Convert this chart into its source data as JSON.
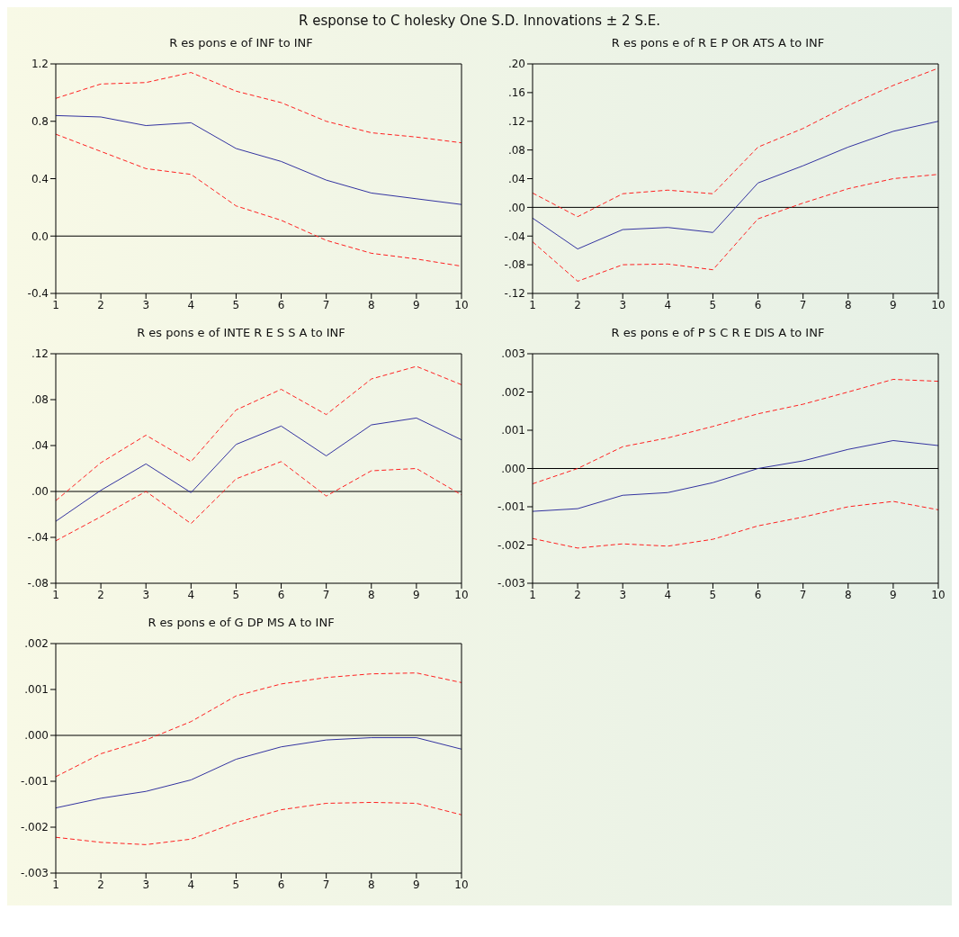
{
  "chart_data": [
    {
      "type": "line",
      "title": "R es pons e of INF to INF",
      "annotations": [
        "R esponse to C holesky One S.D. Innovations ± 2 S.E."
      ],
      "categories": [
        "1",
        "2",
        "3",
        "4",
        "5",
        "6",
        "7",
        "8",
        "9",
        "10"
      ],
      "ylim": [
        -0.4,
        1.2
      ],
      "yticks": [
        {
          "value": -0.4,
          "label": "-0.4"
        },
        {
          "value": 0,
          "label": "0.0"
        },
        0.4,
        0.8,
        1.2
      ],
      "grid": false,
      "legend": false,
      "ref_lines": [
        {
          "axis": "y",
          "value": 0,
          "color": "#000000"
        }
      ],
      "series": [
        {
          "color": "#3333a0",
          "line_style": "solid",
          "values": [
            0.84,
            0.83,
            0.77,
            0.79,
            0.61,
            0.52,
            0.39,
            0.3,
            0.26,
            0.22
          ]
        },
        {
          "color": "#ff2020",
          "line_style": "dashed",
          "values": [
            0.96,
            1.06,
            1.07,
            1.14,
            1.01,
            0.93,
            0.8,
            0.72,
            0.69,
            0.65
          ]
        },
        {
          "color": "#ff2020",
          "line_style": "dashed",
          "values": [
            0.71,
            0.59,
            0.47,
            0.43,
            0.21,
            0.11,
            -0.03,
            -0.12,
            -0.16,
            -0.21
          ]
        }
      ]
    },
    {
      "type": "line",
      "title": "R es pons e of R E P OR ATS A to INF",
      "categories": [
        "1",
        "2",
        "3",
        "4",
        "5",
        "6",
        "7",
        "8",
        "9",
        "10"
      ],
      "ylim": [
        -0.12,
        0.2
      ],
      "yticks": [
        {
          "value": -0.12,
          "label": "-.12"
        },
        {
          "value": -0.08,
          "label": "-.08"
        },
        {
          "value": -0.04,
          "label": "-.04"
        },
        {
          "value": 0,
          "label": ".00"
        },
        {
          "value": 0.04,
          "label": ".04"
        },
        {
          "value": 0.08,
          "label": ".08"
        },
        {
          "value": 0.12,
          "label": ".12"
        },
        {
          "value": 0.16,
          "label": ".16"
        },
        {
          "value": 0.2,
          "label": ".20"
        }
      ],
      "grid": false,
      "legend": false,
      "ref_lines": [
        {
          "axis": "y",
          "value": 0,
          "color": "#000000"
        }
      ],
      "series": [
        {
          "color": "#3333a0",
          "line_style": "solid",
          "values": [
            -0.015,
            -0.058,
            -0.031,
            -0.028,
            -0.035,
            0.034,
            0.058,
            0.084,
            0.106,
            0.12
          ]
        },
        {
          "color": "#ff2020",
          "line_style": "dashed",
          "values": [
            0.02,
            -0.013,
            0.019,
            0.024,
            0.019,
            0.084,
            0.11,
            0.142,
            0.17,
            0.194
          ]
        },
        {
          "color": "#ff2020",
          "line_style": "dashed",
          "values": [
            -0.048,
            -0.103,
            -0.08,
            -0.079,
            -0.087,
            -0.016,
            0.006,
            0.026,
            0.04,
            0.046
          ]
        }
      ]
    },
    {
      "type": "line",
      "title": "R es pons e of INTE R E S S A to INF",
      "categories": [
        "1",
        "2",
        "3",
        "4",
        "5",
        "6",
        "7",
        "8",
        "9",
        "10"
      ],
      "ylim": [
        -0.08,
        0.12
      ],
      "yticks": [
        {
          "value": -0.08,
          "label": "-.08"
        },
        {
          "value": -0.04,
          "label": "-.04"
        },
        {
          "value": 0,
          "label": ".00"
        },
        {
          "value": 0.04,
          "label": ".04"
        },
        {
          "value": 0.08,
          "label": ".08"
        },
        {
          "value": 0.12,
          "label": ".12"
        }
      ],
      "grid": false,
      "legend": false,
      "ref_lines": [
        {
          "axis": "y",
          "value": 0,
          "color": "#000000"
        }
      ],
      "series": [
        {
          "color": "#3333a0",
          "line_style": "solid",
          "values": [
            -0.026,
            0.001,
            0.024,
            -0.001,
            0.041,
            0.057,
            0.031,
            0.058,
            0.064,
            0.045
          ]
        },
        {
          "color": "#ff2020",
          "line_style": "dashed",
          "values": [
            -0.008,
            0.025,
            0.049,
            0.026,
            0.071,
            0.089,
            0.067,
            0.098,
            0.109,
            0.093
          ]
        },
        {
          "color": "#ff2020",
          "line_style": "dashed",
          "values": [
            -0.043,
            -0.022,
            0.0,
            -0.028,
            0.011,
            0.026,
            -0.004,
            0.018,
            0.02,
            -0.003
          ]
        }
      ]
    },
    {
      "type": "line",
      "title": "R es pons e of P S C R E DIS A to INF",
      "categories": [
        "1",
        "2",
        "3",
        "4",
        "5",
        "6",
        "7",
        "8",
        "9",
        "10"
      ],
      "ylim": [
        -0.003,
        0.003
      ],
      "yticks": [
        {
          "value": -0.003,
          "label": "-.003"
        },
        {
          "value": -0.002,
          "label": "-.002"
        },
        {
          "value": -0.001,
          "label": "-.001"
        },
        {
          "value": 0,
          "label": ".000"
        },
        {
          "value": 0.001,
          "label": ".001"
        },
        {
          "value": 0.002,
          "label": ".002"
        },
        {
          "value": 0.003,
          "label": ".003"
        }
      ],
      "grid": false,
      "legend": false,
      "ref_lines": [
        {
          "axis": "y",
          "value": 0,
          "color": "#000000"
        }
      ],
      "series": [
        {
          "color": "#3333a0",
          "line_style": "solid",
          "values": [
            -0.00112,
            -0.00105,
            -0.0007,
            -0.00063,
            -0.00037,
            0,
            0.0002,
            0.0005,
            0.00073,
            0.0006
          ]
        },
        {
          "color": "#ff2020",
          "line_style": "dashed",
          "values": [
            -0.0004,
            0,
            0.00057,
            0.0008,
            0.0011,
            0.00143,
            0.00168,
            0.002,
            0.00233,
            0.00228
          ]
        },
        {
          "color": "#ff2020",
          "line_style": "dashed",
          "values": [
            -0.00183,
            -0.00208,
            -0.00197,
            -0.00203,
            -0.00185,
            -0.0015,
            -0.00127,
            -0.001,
            -0.00086,
            -0.00108
          ]
        }
      ]
    },
    {
      "type": "line",
      "title": "R es pons e of G DP MS A to INF",
      "categories": [
        "1",
        "2",
        "3",
        "4",
        "5",
        "6",
        "7",
        "8",
        "9",
        "10"
      ],
      "ylim": [
        -0.003,
        0.002
      ],
      "yticks": [
        {
          "value": -0.003,
          "label": "-.003"
        },
        {
          "value": -0.002,
          "label": "-.002"
        },
        {
          "value": -0.001,
          "label": "-.001"
        },
        {
          "value": 0,
          "label": ".000"
        },
        {
          "value": 0.001,
          "label": ".001"
        },
        {
          "value": 0.002,
          "label": ".002"
        }
      ],
      "grid": false,
      "legend": false,
      "ref_lines": [
        {
          "axis": "y",
          "value": 0,
          "color": "#000000"
        }
      ],
      "series": [
        {
          "color": "#3333a0",
          "line_style": "solid",
          "values": [
            -0.00158,
            -0.00137,
            -0.00122,
            -0.00097,
            -0.00052,
            -0.00025,
            -0.0001,
            -5e-05,
            -5e-05,
            -0.0003
          ]
        },
        {
          "color": "#ff2020",
          "line_style": "dashed",
          "values": [
            -0.0009,
            -0.0004,
            -0.0001,
            0.0003,
            0.00086,
            0.00112,
            0.00126,
            0.00134,
            0.00136,
            0.00115
          ]
        },
        {
          "color": "#ff2020",
          "line_style": "dashed",
          "values": [
            -0.00222,
            -0.00233,
            -0.00238,
            -0.00226,
            -0.0019,
            -0.00162,
            -0.00148,
            -0.00146,
            -0.00148,
            -0.00173
          ]
        }
      ]
    }
  ]
}
